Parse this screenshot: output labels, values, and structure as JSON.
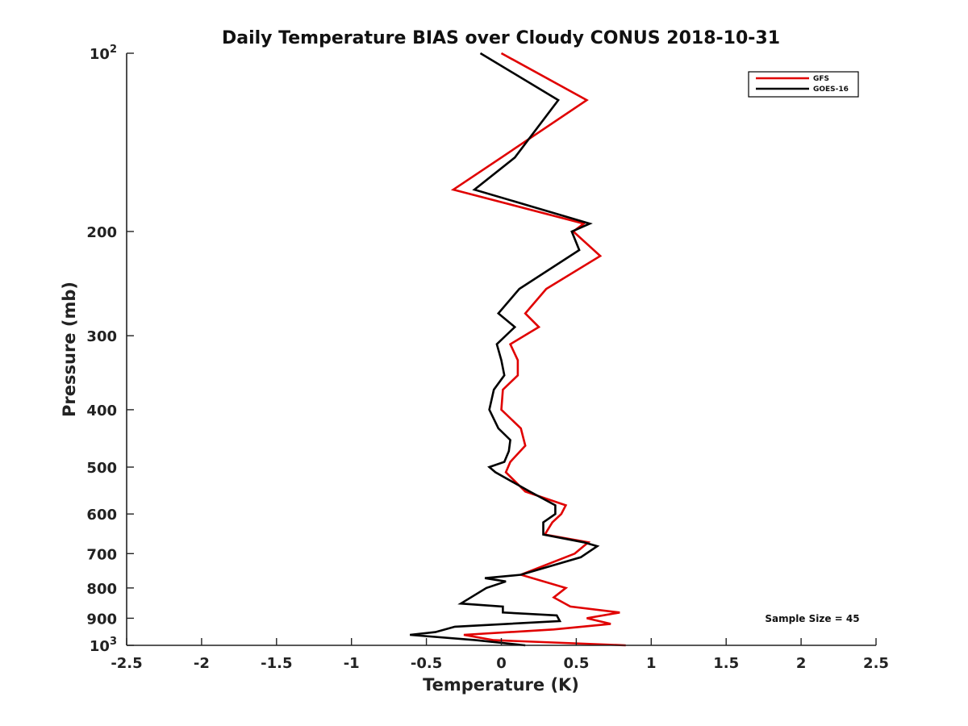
{
  "chart_data": {
    "type": "line",
    "title": "Daily Temperature BIAS over Cloudy CONUS 2018-10-31",
    "xlabel": "Temperature (K)",
    "ylabel": "Pressure (mb)",
    "xlim": [
      -2.5,
      2.5
    ],
    "ylim": [
      100,
      1000
    ],
    "y_scale": "log",
    "y_reversed": true,
    "grid": false,
    "legend_position": "top-right",
    "x_ticks": [
      "-2.5",
      "-2",
      "-1.5",
      "-1",
      "-0.5",
      "0",
      "0.5",
      "1",
      "1.5",
      "2",
      "2.5"
    ],
    "x_tick_values": [
      -2.5,
      -2,
      -1.5,
      -1,
      -0.5,
      0,
      0.5,
      1,
      1.5,
      2,
      2.5
    ],
    "y_ticks": [
      {
        "value": 100,
        "label": "10",
        "sup": "2"
      },
      {
        "value": 200,
        "label": "200",
        "sup": ""
      },
      {
        "value": 300,
        "label": "300",
        "sup": ""
      },
      {
        "value": 400,
        "label": "400",
        "sup": ""
      },
      {
        "value": 500,
        "label": "500",
        "sup": ""
      },
      {
        "value": 600,
        "label": "600",
        "sup": ""
      },
      {
        "value": 700,
        "label": "700",
        "sup": ""
      },
      {
        "value": 800,
        "label": "800",
        "sup": ""
      },
      {
        "value": 900,
        "label": "900",
        "sup": ""
      },
      {
        "value": 1000,
        "label": "10",
        "sup": "3"
      }
    ],
    "series": [
      {
        "name": "GFS",
        "color": "#e00000",
        "points": [
          [
            0,
            100
          ],
          [
            0.57,
            120
          ],
          [
            0,
            150
          ],
          [
            -0.32,
            170
          ],
          [
            0.55,
            194
          ],
          [
            0.48,
            200
          ],
          [
            0.66,
            220
          ],
          [
            0.3,
            250
          ],
          [
            0.16,
            275
          ],
          [
            0.25,
            290
          ],
          [
            0.06,
            310
          ],
          [
            0.11,
            330
          ],
          [
            0.11,
            350
          ],
          [
            0.01,
            370
          ],
          [
            0.0,
            400
          ],
          [
            0.13,
            430
          ],
          [
            0.16,
            460
          ],
          [
            0.06,
            490
          ],
          [
            0.03,
            510
          ],
          [
            0.16,
            550
          ],
          [
            0.43,
            580
          ],
          [
            0.4,
            600
          ],
          [
            0.34,
            620
          ],
          [
            0.29,
            650
          ],
          [
            0.58,
            670
          ],
          [
            0.49,
            700
          ],
          [
            0.13,
            760
          ],
          [
            0.43,
            800
          ],
          [
            0.35,
            830
          ],
          [
            0.46,
            860
          ],
          [
            0.79,
            880
          ],
          [
            0.57,
            900
          ],
          [
            0.73,
            920
          ],
          [
            0.35,
            940
          ],
          [
            -0.25,
            960
          ],
          [
            -0.05,
            980
          ],
          [
            0.83,
            1000
          ]
        ]
      },
      {
        "name": "GOES-16",
        "color": "#000000",
        "points": [
          [
            -0.14,
            100
          ],
          [
            0.38,
            120
          ],
          [
            0.09,
            150
          ],
          [
            -0.18,
            170
          ],
          [
            0.59,
            194
          ],
          [
            0.47,
            200
          ],
          [
            0.52,
            215
          ],
          [
            0.12,
            250
          ],
          [
            -0.02,
            275
          ],
          [
            0.09,
            290
          ],
          [
            -0.03,
            310
          ],
          [
            0.0,
            330
          ],
          [
            0.02,
            350
          ],
          [
            -0.05,
            370
          ],
          [
            -0.08,
            400
          ],
          [
            -0.02,
            430
          ],
          [
            0.06,
            450
          ],
          [
            0.05,
            470
          ],
          [
            0.02,
            490
          ],
          [
            -0.08,
            500
          ],
          [
            -0.04,
            510
          ],
          [
            0.19,
            550
          ],
          [
            0.36,
            580
          ],
          [
            0.36,
            600
          ],
          [
            0.28,
            620
          ],
          [
            0.28,
            650
          ],
          [
            0.55,
            670
          ],
          [
            0.64,
            680
          ],
          [
            0.53,
            710
          ],
          [
            0.13,
            760
          ],
          [
            -0.11,
            770
          ],
          [
            0.03,
            780
          ],
          [
            -0.1,
            800
          ],
          [
            -0.27,
            850
          ],
          [
            0.01,
            860
          ],
          [
            0.01,
            880
          ],
          [
            0.37,
            890
          ],
          [
            0.39,
            910
          ],
          [
            -0.31,
            930
          ],
          [
            -0.44,
            950
          ],
          [
            -0.61,
            960
          ],
          [
            -0.17,
            980
          ],
          [
            0.16,
            1000
          ]
        ]
      }
    ],
    "annotation": "Sample Size = 45"
  }
}
